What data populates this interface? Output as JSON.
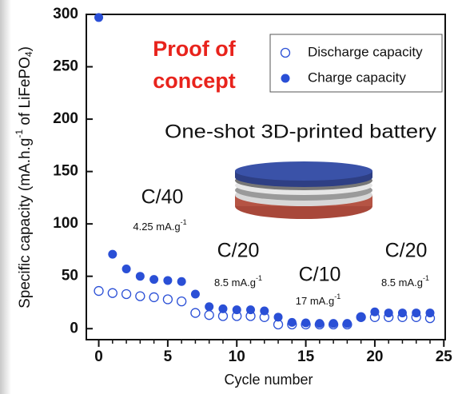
{
  "chart_data": {
    "type": "scatter",
    "title": [
      "Proof of",
      "concept"
    ],
    "subtitle": "One-shot 3D-printed battery",
    "xlabel": "Cycle number",
    "ylabel": [
      "Specific capacity (mA.h.g",
      "-1",
      " of LiFePO",
      "4",
      ")"
    ],
    "xlim": [
      -0.9,
      25.1
    ],
    "ylim": [
      -10.5,
      300
    ],
    "xticks": [
      0,
      5,
      10,
      15,
      20,
      25
    ],
    "yticks": [
      0,
      50,
      100,
      150,
      200,
      250,
      300
    ],
    "legend": "upper right",
    "series": [
      {
        "name": "Discharge capacity",
        "color": "#2a4fd6",
        "marker": "open",
        "x": [
          0,
          1,
          2,
          3,
          4,
          5,
          6,
          7,
          8,
          9,
          10,
          11,
          12,
          13,
          14,
          15,
          16,
          17,
          18,
          19,
          20,
          21,
          22,
          23,
          24
        ],
        "values": [
          36,
          34,
          33,
          31,
          30,
          28,
          26,
          15,
          13,
          12,
          12,
          12,
          11,
          4,
          4,
          4,
          4,
          4,
          4,
          11,
          11,
          11,
          11,
          11,
          10
        ]
      },
      {
        "name": "Charge capacity",
        "color": "#2a4fd6",
        "marker": "filled",
        "x": [
          0,
          1,
          2,
          3,
          4,
          5,
          6,
          7,
          8,
          9,
          10,
          11,
          12,
          13,
          14,
          15,
          16,
          17,
          18,
          19,
          20,
          21,
          22,
          23,
          24
        ],
        "values": [
          297,
          71,
          57,
          50,
          47,
          46,
          45,
          33,
          21,
          19,
          18,
          18,
          17,
          11,
          6,
          5.5,
          5,
          5,
          5,
          11,
          16,
          15,
          15,
          15,
          15
        ]
      }
    ],
    "annotations": [
      {
        "rate": "C/40",
        "current": "4.25 mA.g",
        "sup": "-1"
      },
      {
        "rate": "C/20",
        "current": "8.5 mA.g",
        "sup": "-1"
      },
      {
        "rate": "C/10",
        "current": "17 mA.g",
        "sup": "-1"
      },
      {
        "rate": "C/20",
        "current": "8.5 mA.g",
        "sup": "-1"
      }
    ]
  }
}
